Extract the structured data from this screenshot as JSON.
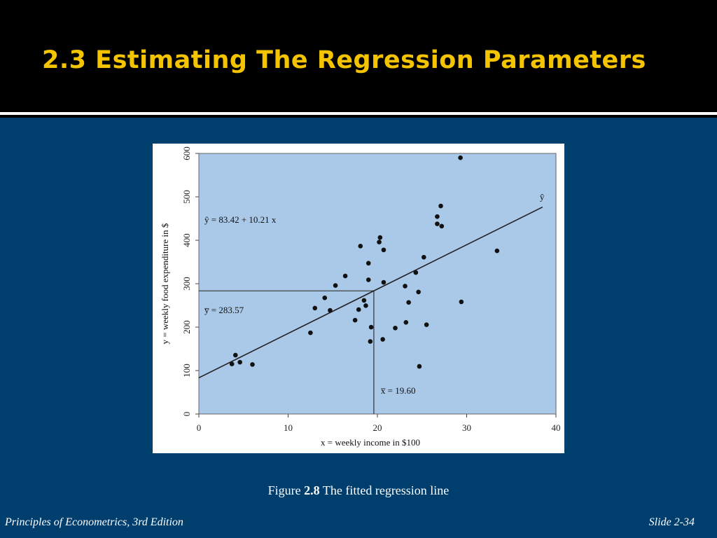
{
  "slide": {
    "title": "2.3 Estimating The Regression Parameters",
    "caption_prefix": "Figure",
    "caption_number": "2.8",
    "caption_text": "The fitted regression line",
    "footer_left": "Principles of Econometrics, 3rd Edition",
    "footer_right": "Slide 2-34"
  },
  "colors": {
    "background": "#003e6e",
    "header": "#000000",
    "title": "#f5c400",
    "plot_area": "#aac8e8",
    "points": "#111111"
  },
  "chart_data": {
    "type": "scatter",
    "xlabel": "x = weekly income in $100",
    "ylabel": "y = weekly food expenditure in $",
    "xlim": [
      0,
      40
    ],
    "ylim": [
      0,
      600
    ],
    "xticks": [
      "0",
      "10",
      "20",
      "30",
      "40"
    ],
    "yticks": [
      "0",
      "100",
      "200",
      "300",
      "400",
      "500",
      "600"
    ],
    "grid": false,
    "points": [
      [
        3.7,
        115.2
      ],
      [
        4.1,
        135.6
      ],
      [
        4.6,
        119.3
      ],
      [
        6.0,
        114.0
      ],
      [
        12.5,
        187.0
      ],
      [
        13.0,
        243.9
      ],
      [
        14.1,
        267.4
      ],
      [
        14.7,
        238.7
      ],
      [
        15.3,
        295.9
      ],
      [
        16.4,
        317.8
      ],
      [
        17.5,
        216.0
      ],
      [
        17.9,
        240.4
      ],
      [
        18.1,
        386.6
      ],
      [
        18.5,
        261.6
      ],
      [
        18.7,
        249.5
      ],
      [
        19.0,
        347.2
      ],
      [
        19.0,
        309.0
      ],
      [
        19.2,
        167.0
      ],
      [
        19.3,
        200.0
      ],
      [
        20.2,
        395.8
      ],
      [
        20.3,
        406.3
      ],
      [
        20.6,
        171.9
      ],
      [
        20.7,
        303.2
      ],
      [
        20.7,
        377.8
      ],
      [
        22.0,
        198.0
      ],
      [
        23.1,
        294.4
      ],
      [
        23.2,
        211.0
      ],
      [
        23.5,
        257.0
      ],
      [
        24.3,
        325.7
      ],
      [
        24.6,
        281.0
      ],
      [
        24.7,
        109.7
      ],
      [
        25.2,
        361.0
      ],
      [
        25.5,
        205.5
      ],
      [
        26.7,
        454.6
      ],
      [
        26.7,
        437.8
      ],
      [
        27.1,
        479.0
      ],
      [
        27.2,
        432.6
      ],
      [
        29.3,
        590.0
      ],
      [
        29.4,
        258.2
      ],
      [
        33.4,
        375.7
      ]
    ],
    "fitted_line": {
      "intercept": 83.42,
      "slope": 10.21,
      "label": "ŷ"
    },
    "mean_x": 19.6,
    "mean_y": 283.57,
    "annotations": {
      "equation": "ŷ = 83.42 + 10.21 x",
      "mean_y_label": "y̅ = 283.57",
      "mean_x_label": "x̅ = 19.60"
    }
  }
}
